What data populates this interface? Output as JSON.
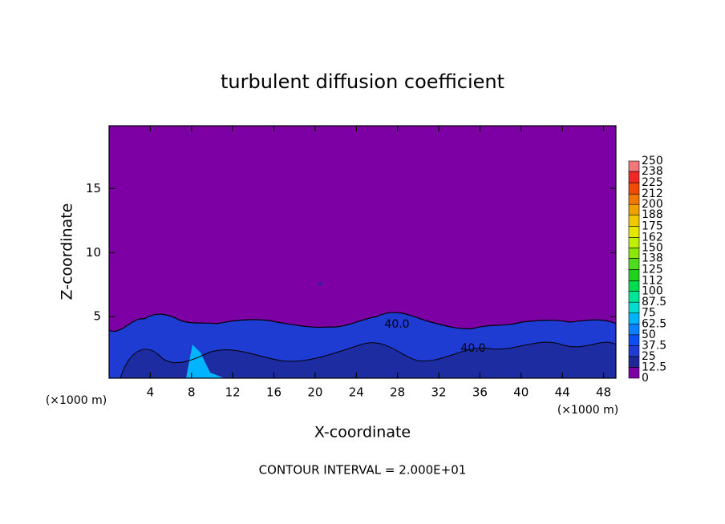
{
  "chart_data": {
    "type": "contour",
    "title": "turbulent diffusion coefficient",
    "xlabel": "X-coordinate",
    "ylabel": "Z-coordinate",
    "x_unit": "(×1000 m)",
    "y_unit": "(×1000 m)",
    "footnote": "CONTOUR INTERVAL = 2.000E+01",
    "xlim": [
      0,
      49.2
    ],
    "ylim": [
      0.2,
      19.9
    ],
    "xticks": [
      4,
      8,
      12,
      16,
      20,
      24,
      28,
      32,
      36,
      40,
      44,
      48
    ],
    "yticks": [
      5,
      10,
      15
    ],
    "contour_labels": [
      "40.0",
      "40.0"
    ],
    "colorbar": {
      "levels": [
        0,
        12.5,
        25,
        37.5,
        50,
        62.5,
        75,
        87.5,
        100,
        112,
        125,
        138,
        150,
        162,
        175,
        188,
        200,
        212,
        225,
        238,
        250
      ],
      "colors": [
        "#7d00a5",
        "#1e2896",
        "#1e3cd2",
        "#0a50f0",
        "#0a82ff",
        "#00b4ff",
        "#00dcd2",
        "#00e696",
        "#00dc50",
        "#1ed21e",
        "#50dc1e",
        "#8ce60a",
        "#bef000",
        "#e6e600",
        "#f0c800",
        "#f0a000",
        "#f07800",
        "#f04b00",
        "#f02828",
        "#f07878"
      ]
    }
  }
}
